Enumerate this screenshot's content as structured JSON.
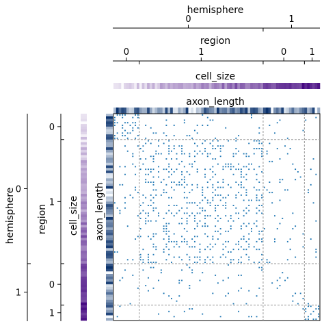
{
  "colors": {
    "dot": "#1f77b4",
    "block_line": "#999999",
    "frame": "#000000",
    "cell_size_low": "#fcfbfd",
    "cell_size_high": "#3f007d",
    "axon_length_low": "#f7fbff",
    "axon_length_high": "#08306b"
  },
  "chart_data": {
    "type": "adjacency-matrix",
    "n_nodes": 80,
    "labels": {
      "hemisphere": "hemisphere",
      "region": "region",
      "cell_size": "cell_size",
      "axon_length": "axon_length"
    },
    "hemisphere_groups": [
      {
        "label": "0",
        "count": 58
      },
      {
        "label": "1",
        "count": 22
      }
    ],
    "region_groups": [
      {
        "label": "0",
        "count": 10
      },
      {
        "label": "1",
        "count": 48
      },
      {
        "label": "0",
        "count": 16
      },
      {
        "label": "1",
        "count": 6
      }
    ],
    "block_densities": [
      [
        0.55,
        0.06,
        0.03,
        0.02
      ],
      [
        0.06,
        0.24,
        0.06,
        0.02
      ],
      [
        0.03,
        0.06,
        0.12,
        0.02
      ],
      [
        0.02,
        0.02,
        0.02,
        0.55
      ]
    ],
    "cell_size_colormap": "Purples",
    "axon_length_colormap": "Blues",
    "grid": false
  }
}
